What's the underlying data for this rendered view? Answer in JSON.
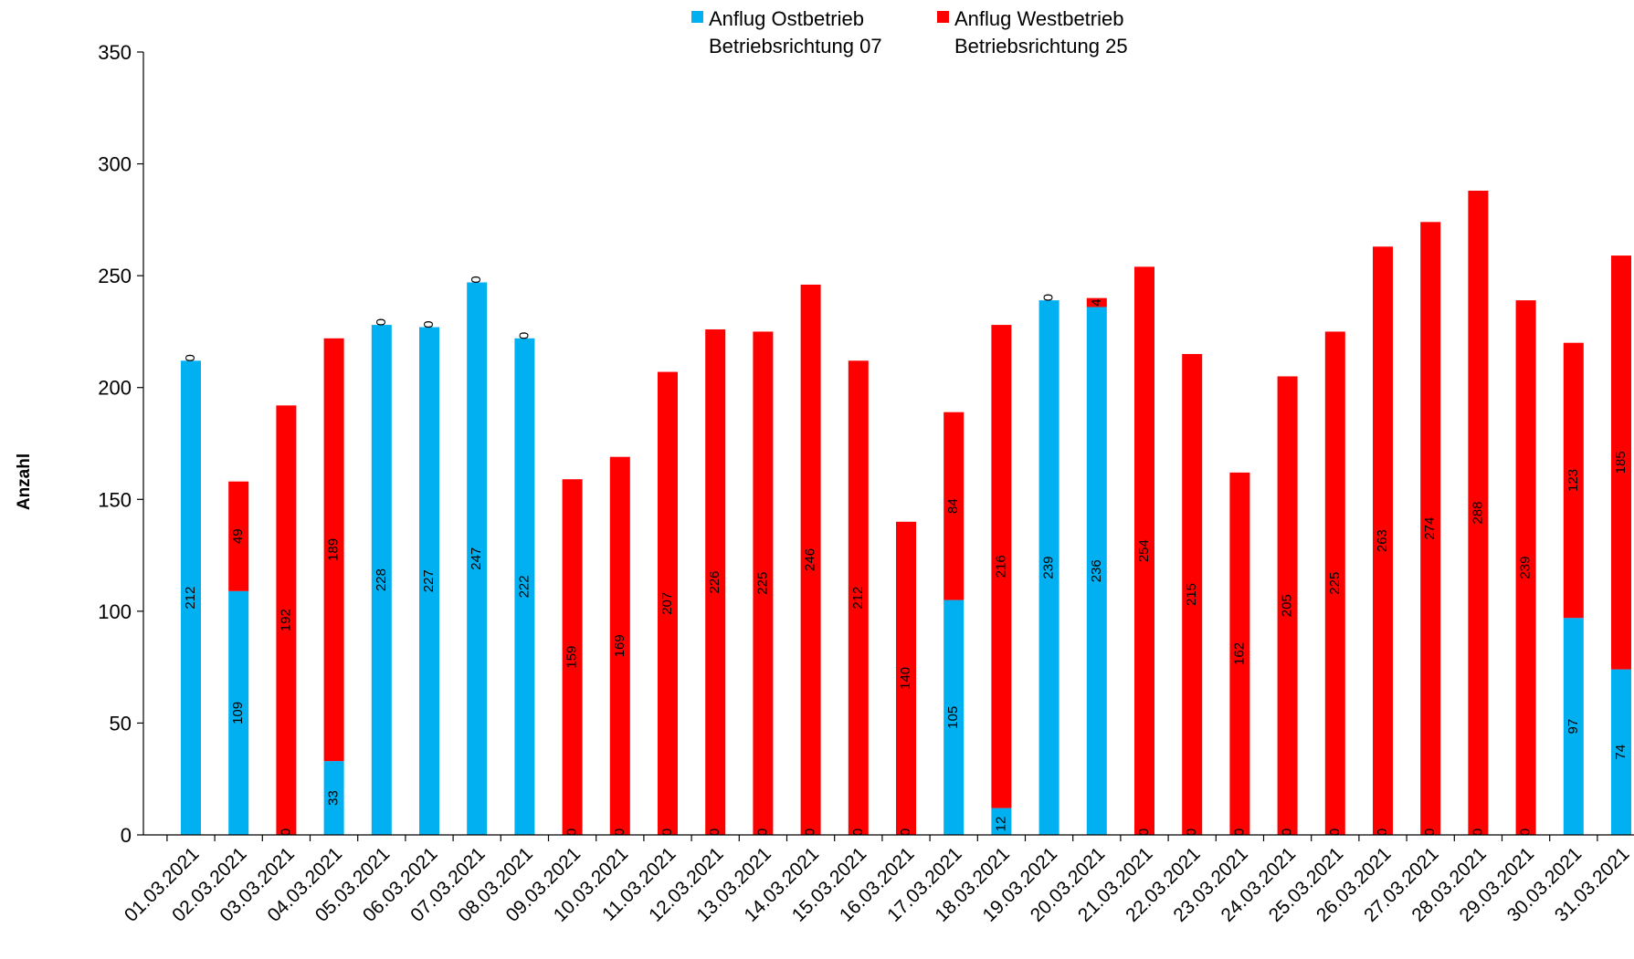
{
  "chart_data": {
    "type": "bar",
    "stacked": true,
    "title": "",
    "xlabel": "",
    "ylabel": "Anzahl",
    "ylim": [
      0,
      350
    ],
    "yticks": [
      0,
      50,
      100,
      150,
      200,
      250,
      300,
      350
    ],
    "grid": false,
    "legend_position": "top",
    "categories": [
      "01.03.2021",
      "02.03.2021",
      "03.03.2021",
      "04.03.2021",
      "05.03.2021",
      "06.03.2021",
      "07.03.2021",
      "08.03.2021",
      "09.03.2021",
      "10.03.2021",
      "11.03.2021",
      "12.03.2021",
      "13.03.2021",
      "14.03.2021",
      "15.03.2021",
      "16.03.2021",
      "17.03.2021",
      "18.03.2021",
      "19.03.2021",
      "20.03.2021",
      "21.03.2021",
      "22.03.2021",
      "23.03.2021",
      "24.03.2021",
      "25.03.2021",
      "26.03.2021",
      "27.03.2021",
      "28.03.2021",
      "29.03.2021",
      "30.03.2021",
      "31.03.2021"
    ],
    "series": [
      {
        "name": "Anflug Ostbetrieb",
        "name_line2": "Betriebsrichtung 07",
        "color": "#00B0F0",
        "values": [
          212,
          109,
          0,
          33,
          228,
          227,
          247,
          222,
          0,
          0,
          0,
          0,
          0,
          0,
          0,
          0,
          105,
          12,
          239,
          236,
          0,
          0,
          0,
          0,
          0,
          0,
          0,
          0,
          0,
          97,
          74
        ]
      },
      {
        "name": "Anflug Westbetrieb",
        "name_line2": "Betriebsrichtung 25",
        "color": "#FF0000",
        "values": [
          0,
          49,
          192,
          189,
          0,
          0,
          0,
          0,
          159,
          169,
          207,
          226,
          225,
          246,
          212,
          140,
          84,
          216,
          0,
          4,
          254,
          215,
          162,
          205,
          225,
          263,
          274,
          288,
          239,
          123,
          185
        ]
      }
    ]
  }
}
